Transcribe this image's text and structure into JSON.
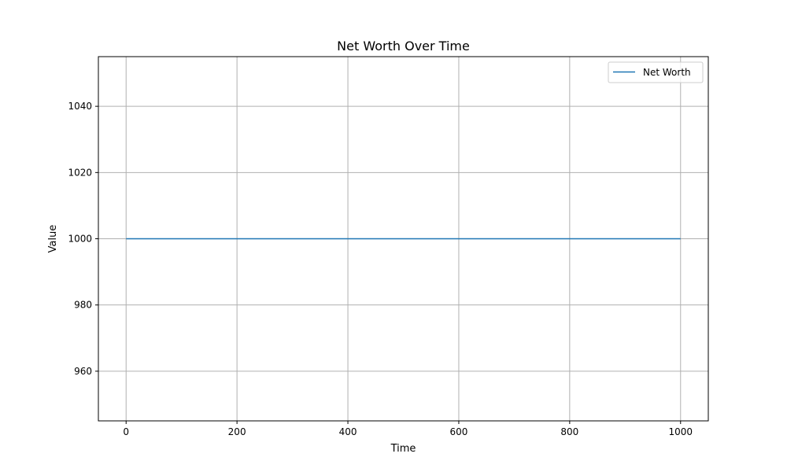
{
  "chart_data": {
    "type": "line",
    "title": "Net Worth Over Time",
    "xlabel": "Time",
    "ylabel": "Value",
    "xlim": [
      -50,
      1050
    ],
    "ylim": [
      945,
      1055
    ],
    "xticks": [
      0,
      200,
      400,
      600,
      800,
      1000
    ],
    "yticks": [
      960,
      980,
      1000,
      1020,
      1040
    ],
    "grid": true,
    "legend_position": "top-right",
    "series": [
      {
        "name": "Net Worth",
        "color": "#1f77b4",
        "x": [
          0,
          100,
          200,
          300,
          400,
          500,
          600,
          700,
          800,
          900,
          1000
        ],
        "y": [
          1000,
          1000,
          1000,
          1000,
          1000,
          1000,
          1000,
          1000,
          1000,
          1000,
          1000
        ]
      }
    ]
  }
}
